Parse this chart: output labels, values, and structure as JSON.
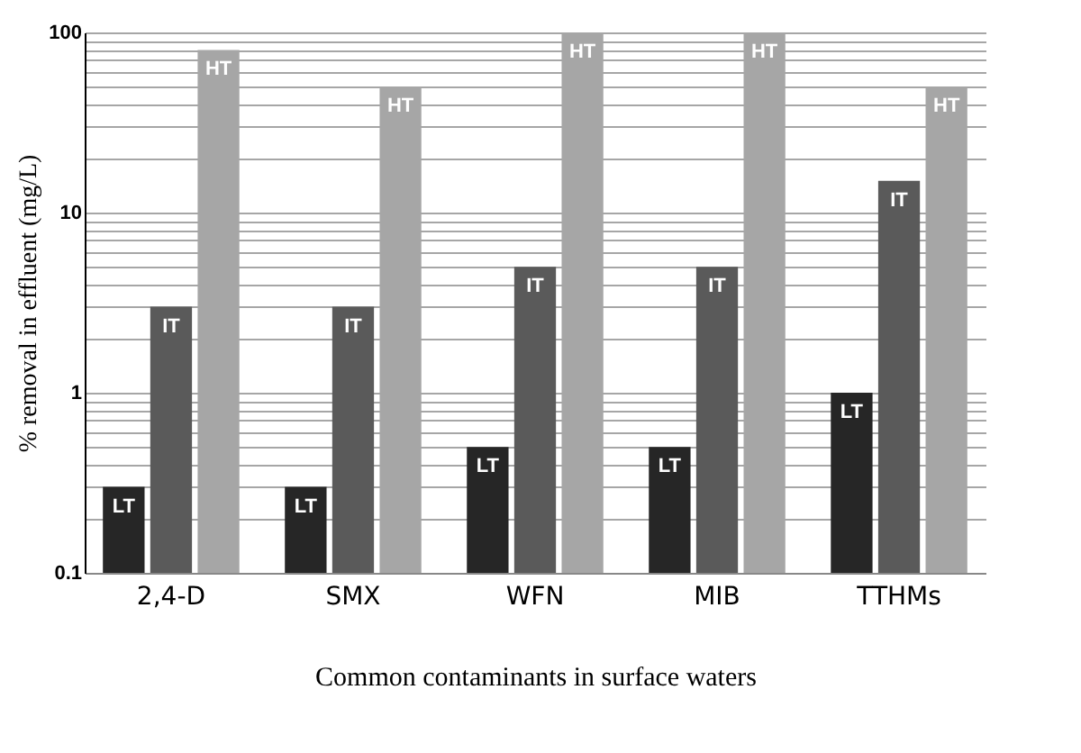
{
  "chart_data": {
    "type": "bar",
    "xlabel": "Common contaminants in surface waters",
    "ylabel": "% removal in effluent (mg/L)",
    "categories": [
      "2,4-D",
      "SMX",
      "WFN",
      "MIB",
      "TTHMs"
    ],
    "series": [
      {
        "name": "LT",
        "color": "#262626",
        "values": [
          0.3,
          0.3,
          0.5,
          0.5,
          1
        ]
      },
      {
        "name": "IT",
        "color": "#5a5a5a",
        "values": [
          3,
          3,
          5,
          5,
          15
        ]
      },
      {
        "name": "HT",
        "color": "#a6a6a6",
        "values": [
          80,
          50,
          100,
          100,
          50
        ]
      }
    ],
    "log": "y",
    "ylim": [
      0.1,
      100
    ],
    "yticks": [
      0.1,
      {
        "value": 0.2,
        "label": null
      },
      {
        "value": 0.3,
        "label": null
      },
      {
        "value": 0.4,
        "label": null
      },
      {
        "value": 0.5,
        "label": null
      },
      {
        "value": 0.6,
        "label": null
      },
      {
        "value": 0.7,
        "label": null
      },
      {
        "value": 0.8,
        "label": null
      },
      {
        "value": 0.9,
        "label": null
      },
      1,
      {
        "value": 2,
        "label": null
      },
      {
        "value": 3,
        "label": null
      },
      {
        "value": 4,
        "label": null
      },
      {
        "value": 5,
        "label": null
      },
      {
        "value": 6,
        "label": null
      },
      {
        "value": 7,
        "label": null
      },
      {
        "value": 8,
        "label": null
      },
      {
        "value": 9,
        "label": null
      },
      10,
      {
        "value": 20,
        "label": null
      },
      {
        "value": 30,
        "label": null
      },
      {
        "value": 40,
        "label": null
      },
      {
        "value": 50,
        "label": null
      },
      {
        "value": 60,
        "label": null
      },
      {
        "value": 70,
        "label": null
      },
      {
        "value": 80,
        "label": null
      },
      {
        "value": 90,
        "label": null
      },
      100
    ],
    "grid": "y",
    "legend": false
  }
}
